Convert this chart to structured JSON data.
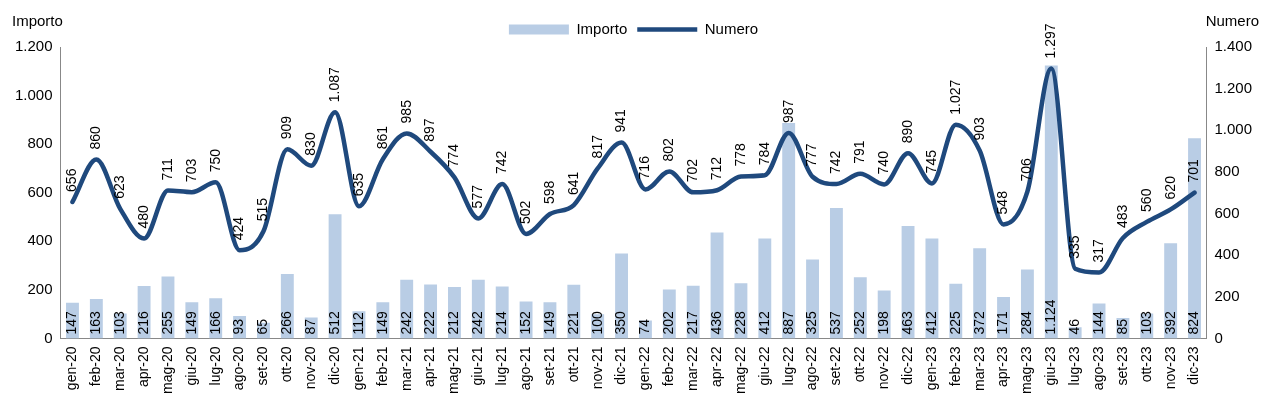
{
  "chart_data": {
    "type": "bar",
    "categories": [
      "gen-20",
      "feb-20",
      "mar-20",
      "apr-20",
      "mag-20",
      "giu-20",
      "lug-20",
      "ago-20",
      "set-20",
      "ott-20",
      "nov-20",
      "dic-20",
      "gen-21",
      "feb-21",
      "mar-21",
      "apr-21",
      "mag-21",
      "giu-21",
      "lug-21",
      "ago-21",
      "set-21",
      "ott-21",
      "nov-21",
      "dic-21",
      "gen-22",
      "feb-22",
      "mar-22",
      "apr-22",
      "mag-22",
      "giu-22",
      "lug-22",
      "ago-22",
      "set-22",
      "ott-22",
      "nov-22",
      "dic-22",
      "gen-23",
      "feb-23",
      "mar-23",
      "apr-23",
      "mag-23",
      "giu-23",
      "lug-23",
      "ago-23",
      "set-23",
      "ott-23",
      "nov-23",
      "dic-23"
    ],
    "series": [
      {
        "name": "Importo",
        "color": "#b9cde5",
        "values": [
          147,
          163,
          103,
          216,
          255,
          149,
          166,
          93,
          65,
          266,
          87,
          512,
          112,
          149,
          242,
          222,
          212,
          242,
          214,
          152,
          149,
          221,
          100,
          350,
          74,
          202,
          217,
          436,
          228,
          412,
          887,
          325,
          537,
          252,
          198,
          463,
          412,
          225,
          372,
          171,
          284,
          1124,
          46,
          144,
          85,
          103,
          392,
          824
        ],
        "value_labels": [
          "147",
          "163",
          "103",
          "216",
          "255",
          "149",
          "166",
          "93",
          "65",
          "266",
          "87",
          "512",
          "112",
          "149",
          "242",
          "222",
          "212",
          "242",
          "214",
          "152",
          "149",
          "221",
          "100",
          "350",
          "74",
          "202",
          "217",
          "436",
          "228",
          "412",
          "887",
          "325",
          "537",
          "252",
          "198",
          "463",
          "412",
          "225",
          "372",
          "171",
          "284",
          "1.124",
          "46",
          "144",
          "85",
          "103",
          "392",
          "824"
        ]
      },
      {
        "name": "Numero",
        "type": "line",
        "axis": "y2",
        "color": "#1f497d",
        "values": [
          656,
          860,
          623,
          480,
          711,
          703,
          750,
          424,
          515,
          909,
          830,
          1087,
          635,
          861,
          985,
          897,
          774,
          577,
          742,
          502,
          598,
          641,
          817,
          941,
          716,
          802,
          702,
          712,
          778,
          784,
          987,
          777,
          742,
          791,
          740,
          890,
          745,
          1027,
          903,
          548,
          706,
          1297,
          335,
          317,
          483,
          560,
          620,
          701
        ],
        "value_labels": [
          "656",
          "860",
          "623",
          "480",
          "711",
          "703",
          "750",
          "424",
          "515",
          "909",
          "830",
          "1.087",
          "635",
          "861",
          "985",
          "897",
          "774",
          "577",
          "742",
          "502",
          "598",
          "641",
          "817",
          "941",
          "716",
          "802",
          "702",
          "712",
          "778",
          "784",
          "987",
          "777",
          "742",
          "791",
          "740",
          "890",
          "745",
          "1.027",
          "903",
          "548",
          "706",
          "1.297",
          "335",
          "317",
          "483",
          "560",
          "620",
          "701"
        ]
      }
    ],
    "ylabel": "Importo",
    "y2label": "Numero",
    "ylim": [
      0,
      1200
    ],
    "yticks": [
      0,
      200,
      400,
      600,
      800,
      {
        "value": 1000,
        "label": "1.000"
      },
      {
        "value": 1200,
        "label": "1.200"
      }
    ],
    "y2lim": [
      0,
      1400
    ],
    "y2ticks": [
      0,
      200,
      400,
      600,
      800,
      {
        "value": 1000,
        "label": "1.000"
      },
      {
        "value": 1200,
        "label": "1.200"
      },
      {
        "value": 1400,
        "label": "1.400"
      }
    ],
    "grid": false,
    "legend": "top",
    "marker": "none",
    "line_style": "solid"
  }
}
